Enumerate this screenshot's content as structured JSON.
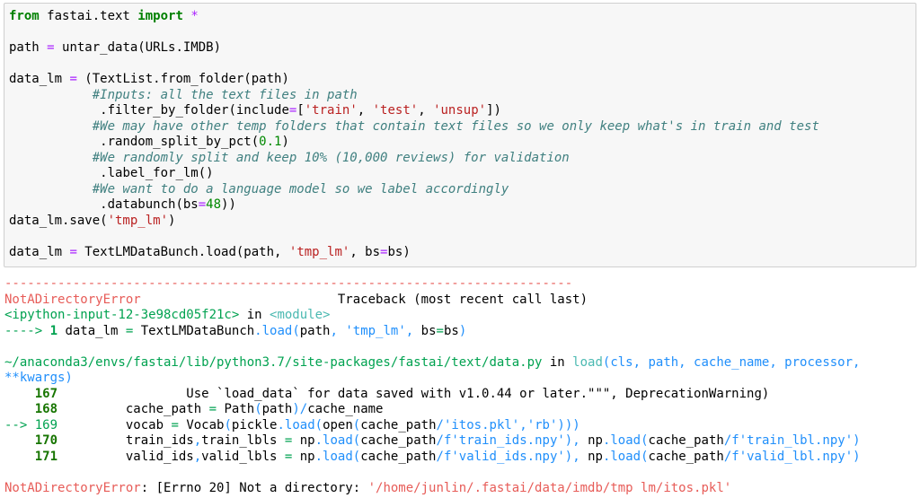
{
  "palette": {
    "keyword": "#008000",
    "operator": "#AA22FF",
    "string": "#BA2121",
    "comment": "#408080",
    "number": "#008800",
    "ansi_red": "#e75c58",
    "ansi_green": "#00a250",
    "lineno_green": "#177500",
    "ansi_cyan": "#4ab9b1",
    "ansi_blue": "#208ffb",
    "cell_bg": "#f7f7f7",
    "cell_border": "#cfcfcf"
  },
  "input_cell": {
    "lines": [
      [
        [
          "kw",
          "from"
        ],
        [
          "pl",
          " fastai.text "
        ],
        [
          "kw",
          "import"
        ],
        [
          "pl",
          " "
        ],
        [
          "op",
          "*"
        ]
      ],
      [],
      [
        [
          "pl",
          "path "
        ],
        [
          "op",
          "="
        ],
        [
          "pl",
          " untar_data(URLs.IMDB)"
        ]
      ],
      [],
      [
        [
          "pl",
          "data_lm "
        ],
        [
          "op",
          "="
        ],
        [
          "pl",
          " (TextList.from_folder(path)"
        ]
      ],
      [
        [
          "pl",
          "           "
        ],
        [
          "cm",
          "#Inputs: all the text files in path"
        ]
      ],
      [
        [
          "pl",
          "            .filter_by_folder(include"
        ],
        [
          "op",
          "="
        ],
        [
          "pl",
          "["
        ],
        [
          "st",
          "'train'"
        ],
        [
          "pl",
          ", "
        ],
        [
          "st",
          "'test'"
        ],
        [
          "pl",
          ", "
        ],
        [
          "st",
          "'unsup'"
        ],
        [
          "pl",
          "])"
        ]
      ],
      [
        [
          "pl",
          "           "
        ],
        [
          "cm",
          "#We may have other temp folders that contain text files so we only keep what's in train and test"
        ]
      ],
      [
        [
          "pl",
          "            .random_split_by_pct("
        ],
        [
          "nm",
          "0.1"
        ],
        [
          "pl",
          ")"
        ]
      ],
      [
        [
          "pl",
          "           "
        ],
        [
          "cm",
          "#We randomly split and keep 10% (10,000 reviews) for validation"
        ]
      ],
      [
        [
          "pl",
          "            .label_for_lm()"
        ]
      ],
      [
        [
          "pl",
          "           "
        ],
        [
          "cm",
          "#We want to do a language model so we label accordingly"
        ]
      ],
      [
        [
          "pl",
          "            .databunch(bs"
        ],
        [
          "op",
          "="
        ],
        [
          "nm",
          "48"
        ],
        [
          "pl",
          "))"
        ]
      ],
      [
        [
          "pl",
          "data_lm.save("
        ],
        [
          "st",
          "'tmp_lm'"
        ],
        [
          "pl",
          ")"
        ]
      ],
      [],
      [
        [
          "pl",
          "data_lm "
        ],
        [
          "op",
          "="
        ],
        [
          "pl",
          " TextLMDataBunch.load(path, "
        ],
        [
          "st",
          "'tmp_lm'"
        ],
        [
          "pl",
          ", bs"
        ],
        [
          "op",
          "="
        ],
        [
          "pl",
          "bs)"
        ]
      ]
    ]
  },
  "output": {
    "lines": [
      [
        [
          "r",
          "---------------------------------------------------------------------------"
        ]
      ],
      [
        [
          "r",
          "NotADirectoryError"
        ],
        [
          "pl",
          "                          Traceback (most recent call last)"
        ]
      ],
      [
        [
          "g",
          "<ipython-input-12-3e98cd05f21c>"
        ],
        [
          "pl",
          " in "
        ],
        [
          "cy",
          "<module>"
        ]
      ],
      [
        [
          "g",
          "----> "
        ],
        [
          "ga",
          "1"
        ],
        [
          "pl",
          " data_lm "
        ],
        [
          "g",
          "="
        ],
        [
          "pl",
          " TextLMDataBunch"
        ],
        [
          "b",
          ".load("
        ],
        [
          "pl",
          "path"
        ],
        [
          "b",
          ","
        ],
        [
          "pl",
          " "
        ],
        [
          "b",
          "'tmp_lm'"
        ],
        [
          "b",
          ","
        ],
        [
          "pl",
          " bs"
        ],
        [
          "g",
          "="
        ],
        [
          "pl",
          "bs"
        ],
        [
          "b",
          ")"
        ]
      ],
      [],
      [
        [
          "g",
          "~/anaconda3/envs/fastai/lib/python3.7/site-packages/fastai/text/data.py"
        ],
        [
          "pl",
          " in "
        ],
        [
          "cy",
          "load"
        ],
        [
          "b",
          "(cls, path, cache_name, processor, **kwargs)"
        ]
      ],
      [
        [
          "gb",
          "    167"
        ],
        [
          "pl",
          "                 Use `load_data` for data saved with v1.0.44 or later.\"\"\", DeprecationWarning)"
        ]
      ],
      [
        [
          "gb",
          "    168"
        ],
        [
          "pl",
          "         cache_path "
        ],
        [
          "g",
          "="
        ],
        [
          "pl",
          " Path"
        ],
        [
          "b",
          "("
        ],
        [
          "pl",
          "path"
        ],
        [
          "b",
          ")/"
        ],
        [
          "pl",
          "cache_name"
        ]
      ],
      [
        [
          "g",
          "--> 169"
        ],
        [
          "pl",
          "         vocab "
        ],
        [
          "g",
          "="
        ],
        [
          "pl",
          " Vocab"
        ],
        [
          "b",
          "("
        ],
        [
          "pl",
          "pickle"
        ],
        [
          "b",
          ".load("
        ],
        [
          "pl",
          "open"
        ],
        [
          "b",
          "("
        ],
        [
          "pl",
          "cache_path"
        ],
        [
          "b",
          "/"
        ],
        [
          "b",
          "'itos.pkl'"
        ],
        [
          "b",
          ","
        ],
        [
          "b",
          "'rb'"
        ],
        [
          "b",
          ")))"
        ]
      ],
      [
        [
          "gb",
          "    170"
        ],
        [
          "pl",
          "         train_ids"
        ],
        [
          "b",
          ","
        ],
        [
          "pl",
          "train_lbls "
        ],
        [
          "g",
          "="
        ],
        [
          "pl",
          " np"
        ],
        [
          "b",
          ".load("
        ],
        [
          "pl",
          "cache_path"
        ],
        [
          "b",
          "/"
        ],
        [
          "b",
          "f'train_ids.npy'"
        ],
        [
          "b",
          "),"
        ],
        [
          "pl",
          " np"
        ],
        [
          "b",
          ".load("
        ],
        [
          "pl",
          "cache_path"
        ],
        [
          "b",
          "/"
        ],
        [
          "b",
          "f'train_lbl.npy'"
        ],
        [
          "b",
          ")"
        ]
      ],
      [
        [
          "gb",
          "    171"
        ],
        [
          "pl",
          "         valid_ids"
        ],
        [
          "b",
          ","
        ],
        [
          "pl",
          "valid_lbls "
        ],
        [
          "g",
          "="
        ],
        [
          "pl",
          " np"
        ],
        [
          "b",
          ".load("
        ],
        [
          "pl",
          "cache_path"
        ],
        [
          "b",
          "/"
        ],
        [
          "b",
          "f'valid_ids.npy'"
        ],
        [
          "b",
          "),"
        ],
        [
          "pl",
          " np"
        ],
        [
          "b",
          ".load("
        ],
        [
          "pl",
          "cache_path"
        ],
        [
          "b",
          "/"
        ],
        [
          "b",
          "f'valid_lbl.npy'"
        ],
        [
          "b",
          ")"
        ]
      ],
      [],
      [
        [
          "r",
          "NotADirectoryError"
        ],
        [
          "pl",
          ": [Errno 20] Not a directory: "
        ],
        [
          "r",
          "'/home/junlin/.fastai/data/imdb/tmp lm/itos.pkl'"
        ]
      ]
    ]
  }
}
